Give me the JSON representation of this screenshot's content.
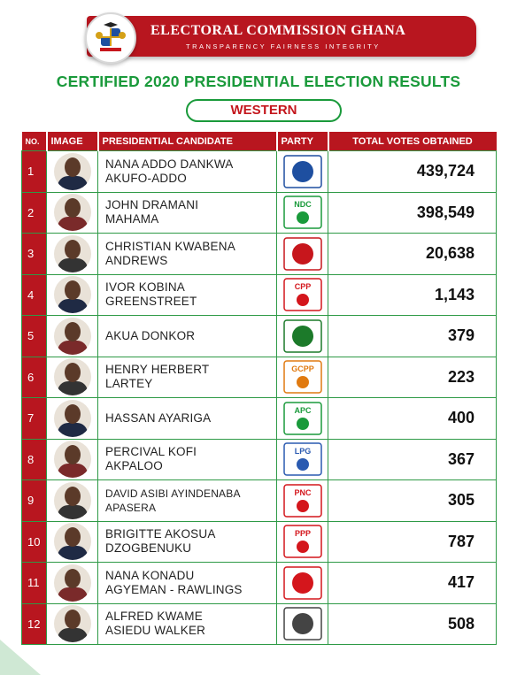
{
  "header": {
    "title": "ELECTORAL COMMISSION GHANA",
    "tagline": "TRANSPARENCY FAIRNESS INTEGRITY"
  },
  "headline": "CERTIFIED 2020 PRESIDENTIAL ELECTION RESULTS",
  "region": "WESTERN",
  "columns": [
    "NO.",
    "IMAGE",
    "PRESIDENTIAL CANDIDATE",
    "PARTY",
    "TOTAL VOTES OBTAINED"
  ],
  "rows": [
    {
      "no": "1",
      "candidate": [
        "NANA ADDO DANKWA",
        "AKUFO-ADDO"
      ],
      "votes": "439,724",
      "party_icon": "npp-logo-icon",
      "color": "#1e4fa0"
    },
    {
      "no": "2",
      "candidate": [
        "JOHN DRAMANI",
        "MAHAMA"
      ],
      "votes": "398,549",
      "party_icon": "ndc-logo-icon",
      "party_text": "NDC",
      "color": "#1a9a3b"
    },
    {
      "no": "3",
      "candidate": [
        "CHRISTIAN KWABENA",
        "ANDREWS"
      ],
      "votes": "20,638",
      "party_icon": "gum-logo-icon",
      "color": "#c7161c"
    },
    {
      "no": "4",
      "candidate": [
        "IVOR KOBINA",
        "GREENSTREET"
      ],
      "votes": "1,143",
      "party_icon": "cpp-logo-icon",
      "party_text": "CPP",
      "color": "#d4161c"
    },
    {
      "no": "5",
      "candidate": [
        "AKUA DONKOR"
      ],
      "votes": "379",
      "party_icon": "gfp-logo-icon",
      "color": "#1c7a2a"
    },
    {
      "no": "6",
      "candidate": [
        "HENRY HERBERT",
        "LARTEY"
      ],
      "votes": "223",
      "party_icon": "gcpp-logo-icon",
      "party_text": "GCPP",
      "color": "#e07a10"
    },
    {
      "no": "7",
      "candidate": [
        "HASSAN AYARIGA"
      ],
      "votes": "400",
      "party_icon": "apc-logo-icon",
      "party_text": "APC",
      "color": "#1a9a3b"
    },
    {
      "no": "8",
      "candidate": [
        "PERCIVAL KOFI",
        "AKPALOO"
      ],
      "votes": "367",
      "party_icon": "lpg-logo-icon",
      "party_text": "LPG",
      "color": "#2a5ab0"
    },
    {
      "no": "9",
      "candidate": [
        "DAVID ASIBI AYINDENABA",
        "APASERA"
      ],
      "votes": "305",
      "party_icon": "pnc-logo-icon",
      "party_text": "PNC",
      "color": "#d4161c",
      "small": true
    },
    {
      "no": "10",
      "candidate": [
        "BRIGITTE AKOSUA",
        "DZOGBENUKU"
      ],
      "votes": "787",
      "party_icon": "ppp-logo-icon",
      "party_text": "PPP",
      "color": "#d4161c"
    },
    {
      "no": "11",
      "candidate": [
        "NANA KONADU",
        "AGYEMAN - RAWLINGS"
      ],
      "votes": "417",
      "party_icon": "ndp-logo-icon",
      "color": "#d4161c"
    },
    {
      "no": "12",
      "candidate": [
        "ALFRED KWAME",
        "ASIEDU WALKER"
      ],
      "votes": "508",
      "party_icon": "independent-logo-icon",
      "color": "#444444"
    }
  ],
  "colors": {
    "brand_red": "#b8161f",
    "brand_green": "#1a9a3b"
  }
}
